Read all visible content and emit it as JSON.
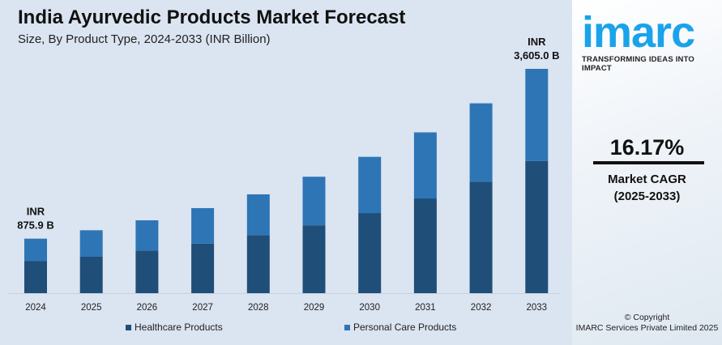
{
  "header": {
    "title": "India Ayurvedic Products Market Forecast",
    "subtitle": "Size, By Product Type, 2024-2033 (INR Billion)"
  },
  "chart_data": {
    "type": "bar",
    "stacked": true,
    "title": "India Ayurvedic Products Market Forecast",
    "subtitle": "Size, By Product Type, 2024-2033 (INR Billion)",
    "categories": [
      "2024",
      "2025",
      "2026",
      "2027",
      "2028",
      "2029",
      "2030",
      "2031",
      "2032",
      "2033"
    ],
    "series": [
      {
        "name": "Healthcare Products",
        "color": "#1f4e79",
        "values": [
          514,
          586,
          686,
          796,
          932,
          1091,
          1288,
          1522,
          1791,
          2125
        ]
      },
      {
        "name": "Personal Care Products",
        "color": "#2e75b6",
        "values": [
          362,
          425,
          485,
          571,
          656,
          780,
          903,
          1062,
          1260,
          1480
        ]
      }
    ],
    "annotations": [
      {
        "category": "2024",
        "lines": [
          "INR",
          "875.9 B"
        ]
      },
      {
        "category": "2033",
        "lines": [
          "INR",
          "3,605.0 B"
        ]
      }
    ],
    "ylim": [
      0,
      3700
    ],
    "grid": false,
    "legend": "bottom"
  },
  "sidebar": {
    "logo": "imarc",
    "tagline": "TRANSFORMING IDEAS INTO IMPACT",
    "cagr_value": "16.17%",
    "cagr_label": "Market CAGR",
    "cagr_period": "(2025-2033)",
    "copyright_line1": "© Copyright",
    "copyright_line2": "IMARC Services Private Limited 2025"
  }
}
